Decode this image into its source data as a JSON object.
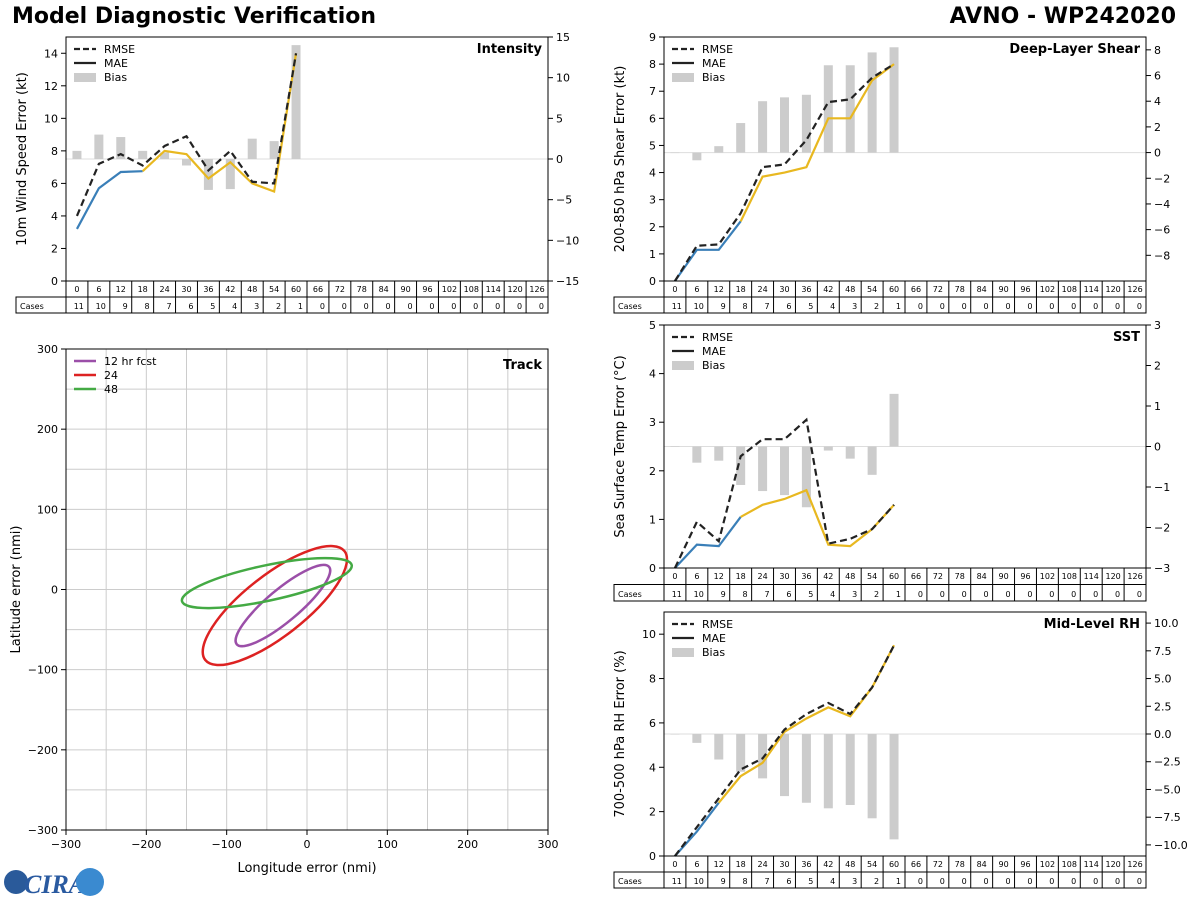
{
  "header": {
    "left_title": "Model Diagnostic Verification",
    "right_title": "AVNO - WP242020"
  },
  "logo": {
    "text": "CIRA"
  },
  "colors": {
    "rmse": "#222222",
    "mae_blue": "#3a7fb8",
    "mae_yellow": "#e8b820",
    "bias": "#cccccc",
    "track_12": "#9b4fa8",
    "track_24": "#dd2222",
    "track_48": "#44aa44",
    "grid": "#cccccc"
  },
  "legend_labels": {
    "rmse": "RMSE",
    "mae": "MAE",
    "bias": "Bias"
  },
  "cases_label": "Cases",
  "chart_data": [
    {
      "id": "intensity",
      "type": "line",
      "title": "Intensity",
      "ylabel": "10m Wind Speed Error (kt)",
      "ylim": [
        0,
        15
      ],
      "yticks": [
        0,
        2,
        4,
        6,
        8,
        10,
        12,
        14
      ],
      "y2lim": [
        -15,
        15
      ],
      "y2ticks": [
        -15,
        -10,
        -5,
        0,
        5,
        10,
        15
      ],
      "x": [
        0,
        6,
        12,
        18,
        24,
        30,
        36,
        42,
        48,
        54,
        60
      ],
      "rmse": [
        4.0,
        7.2,
        7.8,
        7.1,
        8.3,
        8.9,
        6.8,
        8.0,
        6.1,
        6.0,
        14.0
      ],
      "mae": [
        3.2,
        5.7,
        6.7,
        6.75,
        8.0,
        7.8,
        6.3,
        7.3,
        6.0,
        5.5,
        14.0
      ],
      "mae_blue_until": 18,
      "bias": [
        1.0,
        3.0,
        2.7,
        1.0,
        0.8,
        -0.8,
        -3.8,
        -3.7,
        2.5,
        2.2,
        14.0
      ],
      "cases": [
        11,
        10,
        9,
        8,
        7,
        6,
        5,
        4,
        3,
        2,
        1,
        0,
        0,
        0,
        0,
        0,
        0,
        0,
        0,
        0,
        0,
        0
      ]
    },
    {
      "id": "shear",
      "type": "line",
      "title": "Deep-Layer Shear",
      "ylabel": "200-850 hPa Shear Error (kt)",
      "ylim": [
        0,
        9
      ],
      "yticks": [
        0,
        1,
        2,
        3,
        4,
        5,
        6,
        7,
        8,
        9
      ],
      "y2lim": [
        -10,
        9
      ],
      "y2ticks": [
        -8,
        -6,
        -4,
        -2,
        0,
        2,
        4,
        6,
        8
      ],
      "x": [
        0,
        6,
        12,
        18,
        24,
        30,
        36,
        42,
        48,
        54,
        60
      ],
      "rmse": [
        0.0,
        1.3,
        1.35,
        2.5,
        4.2,
        4.3,
        5.2,
        6.6,
        6.7,
        7.5,
        8.0
      ],
      "mae": [
        0.0,
        1.15,
        1.15,
        2.2,
        3.85,
        4.0,
        4.2,
        6.0,
        6.0,
        7.4,
        8.0
      ],
      "mae_blue_until": 18,
      "bias": [
        0.0,
        -0.6,
        0.5,
        2.3,
        4.0,
        4.3,
        4.5,
        6.8,
        6.8,
        7.8,
        8.2
      ],
      "cases": [
        11,
        10,
        9,
        8,
        7,
        6,
        5,
        4,
        3,
        2,
        1,
        0,
        0,
        0,
        0,
        0,
        0,
        0,
        0,
        0,
        0,
        0
      ]
    },
    {
      "id": "sst",
      "type": "line",
      "title": "SST",
      "ylabel": "Sea Surface Temp Error (°C)",
      "ylim": [
        0,
        5
      ],
      "yticks": [
        0,
        1,
        2,
        3,
        4,
        5
      ],
      "y2lim": [
        -3,
        3
      ],
      "y2ticks": [
        -3,
        -2,
        -1,
        0,
        1,
        2,
        3
      ],
      "x": [
        0,
        6,
        12,
        18,
        24,
        30,
        36,
        42,
        48,
        54,
        60
      ],
      "rmse": [
        0.0,
        0.95,
        0.55,
        2.3,
        2.65,
        2.65,
        3.05,
        0.5,
        0.6,
        0.8,
        1.3
      ],
      "mae": [
        0.0,
        0.48,
        0.45,
        1.05,
        1.3,
        1.42,
        1.6,
        0.48,
        0.45,
        0.8,
        1.3
      ],
      "mae_blue_until": 18,
      "bias": [
        0.0,
        -0.4,
        -0.35,
        -0.95,
        -1.1,
        -1.2,
        -1.5,
        -0.1,
        -0.3,
        -0.7,
        1.3
      ],
      "cases": [
        11,
        10,
        9,
        8,
        7,
        6,
        5,
        4,
        3,
        2,
        1,
        0,
        0,
        0,
        0,
        0,
        0,
        0,
        0,
        0,
        0,
        0
      ]
    },
    {
      "id": "rh",
      "type": "line",
      "title": "Mid-Level RH",
      "ylabel": "700-500 hPa RH Error (%)",
      "ylim": [
        0,
        11
      ],
      "yticks": [
        0,
        2,
        4,
        6,
        8,
        10
      ],
      "y2lim": [
        -11,
        11
      ],
      "y2ticks": [
        -10.0,
        -7.5,
        -5.0,
        -2.5,
        0.0,
        2.5,
        5.0,
        7.5,
        10.0
      ],
      "y2ticklabels": [
        "−10.0",
        "−7.5",
        "−5.0",
        "−2.5",
        "0.0",
        "2.5",
        "5.0",
        "7.5",
        "10.0"
      ],
      "x": [
        0,
        6,
        12,
        18,
        24,
        30,
        36,
        42,
        48,
        54,
        60
      ],
      "rmse": [
        0.0,
        1.3,
        2.6,
        3.9,
        4.4,
        5.7,
        6.4,
        6.9,
        6.4,
        7.6,
        9.5
      ],
      "mae": [
        0.0,
        1.1,
        2.4,
        3.6,
        4.2,
        5.6,
        6.2,
        6.7,
        6.3,
        7.6,
        9.5
      ],
      "mae_blue_until": 12,
      "bias": [
        0.0,
        -0.8,
        -2.3,
        -3.4,
        -4.0,
        -5.6,
        -6.2,
        -6.7,
        -6.4,
        -7.6,
        -9.5
      ],
      "cases": [
        11,
        10,
        9,
        8,
        7,
        6,
        5,
        4,
        3,
        2,
        1,
        0,
        0,
        0,
        0,
        0,
        0,
        0,
        0,
        0,
        0,
        0
      ]
    },
    {
      "id": "track",
      "type": "scatter",
      "title": "Track",
      "xlabel": "Longitude error (nmi)",
      "ylabel": "Latitude error (nmi)",
      "xlim": [
        -300,
        300
      ],
      "ylim": [
        -300,
        300
      ],
      "ticks": [
        -300,
        -200,
        -100,
        0,
        100,
        200,
        300
      ],
      "ticklabels": [
        "−300",
        "−200",
        "−100",
        "0",
        "100",
        "200",
        "300"
      ],
      "legend": [
        "12 hr fcst",
        "24",
        "48"
      ],
      "ellipses": [
        {
          "label": "12 hr fcst",
          "cx": -30,
          "cy": -20,
          "rx": 75,
          "ry": 20,
          "angle": -40
        },
        {
          "label": "24",
          "cx": -40,
          "cy": -20,
          "rx": 110,
          "ry": 38,
          "angle": -38
        },
        {
          "label": "48",
          "cx": -50,
          "cy": 8,
          "rx": 108,
          "ry": 22,
          "angle": -12
        }
      ]
    }
  ],
  "x_tick_labels": [
    "0",
    "6",
    "12",
    "18",
    "24",
    "30",
    "36",
    "42",
    "48",
    "54",
    "60",
    "66",
    "72",
    "78",
    "84",
    "90",
    "96",
    "102",
    "108",
    "114",
    "120",
    "126"
  ]
}
